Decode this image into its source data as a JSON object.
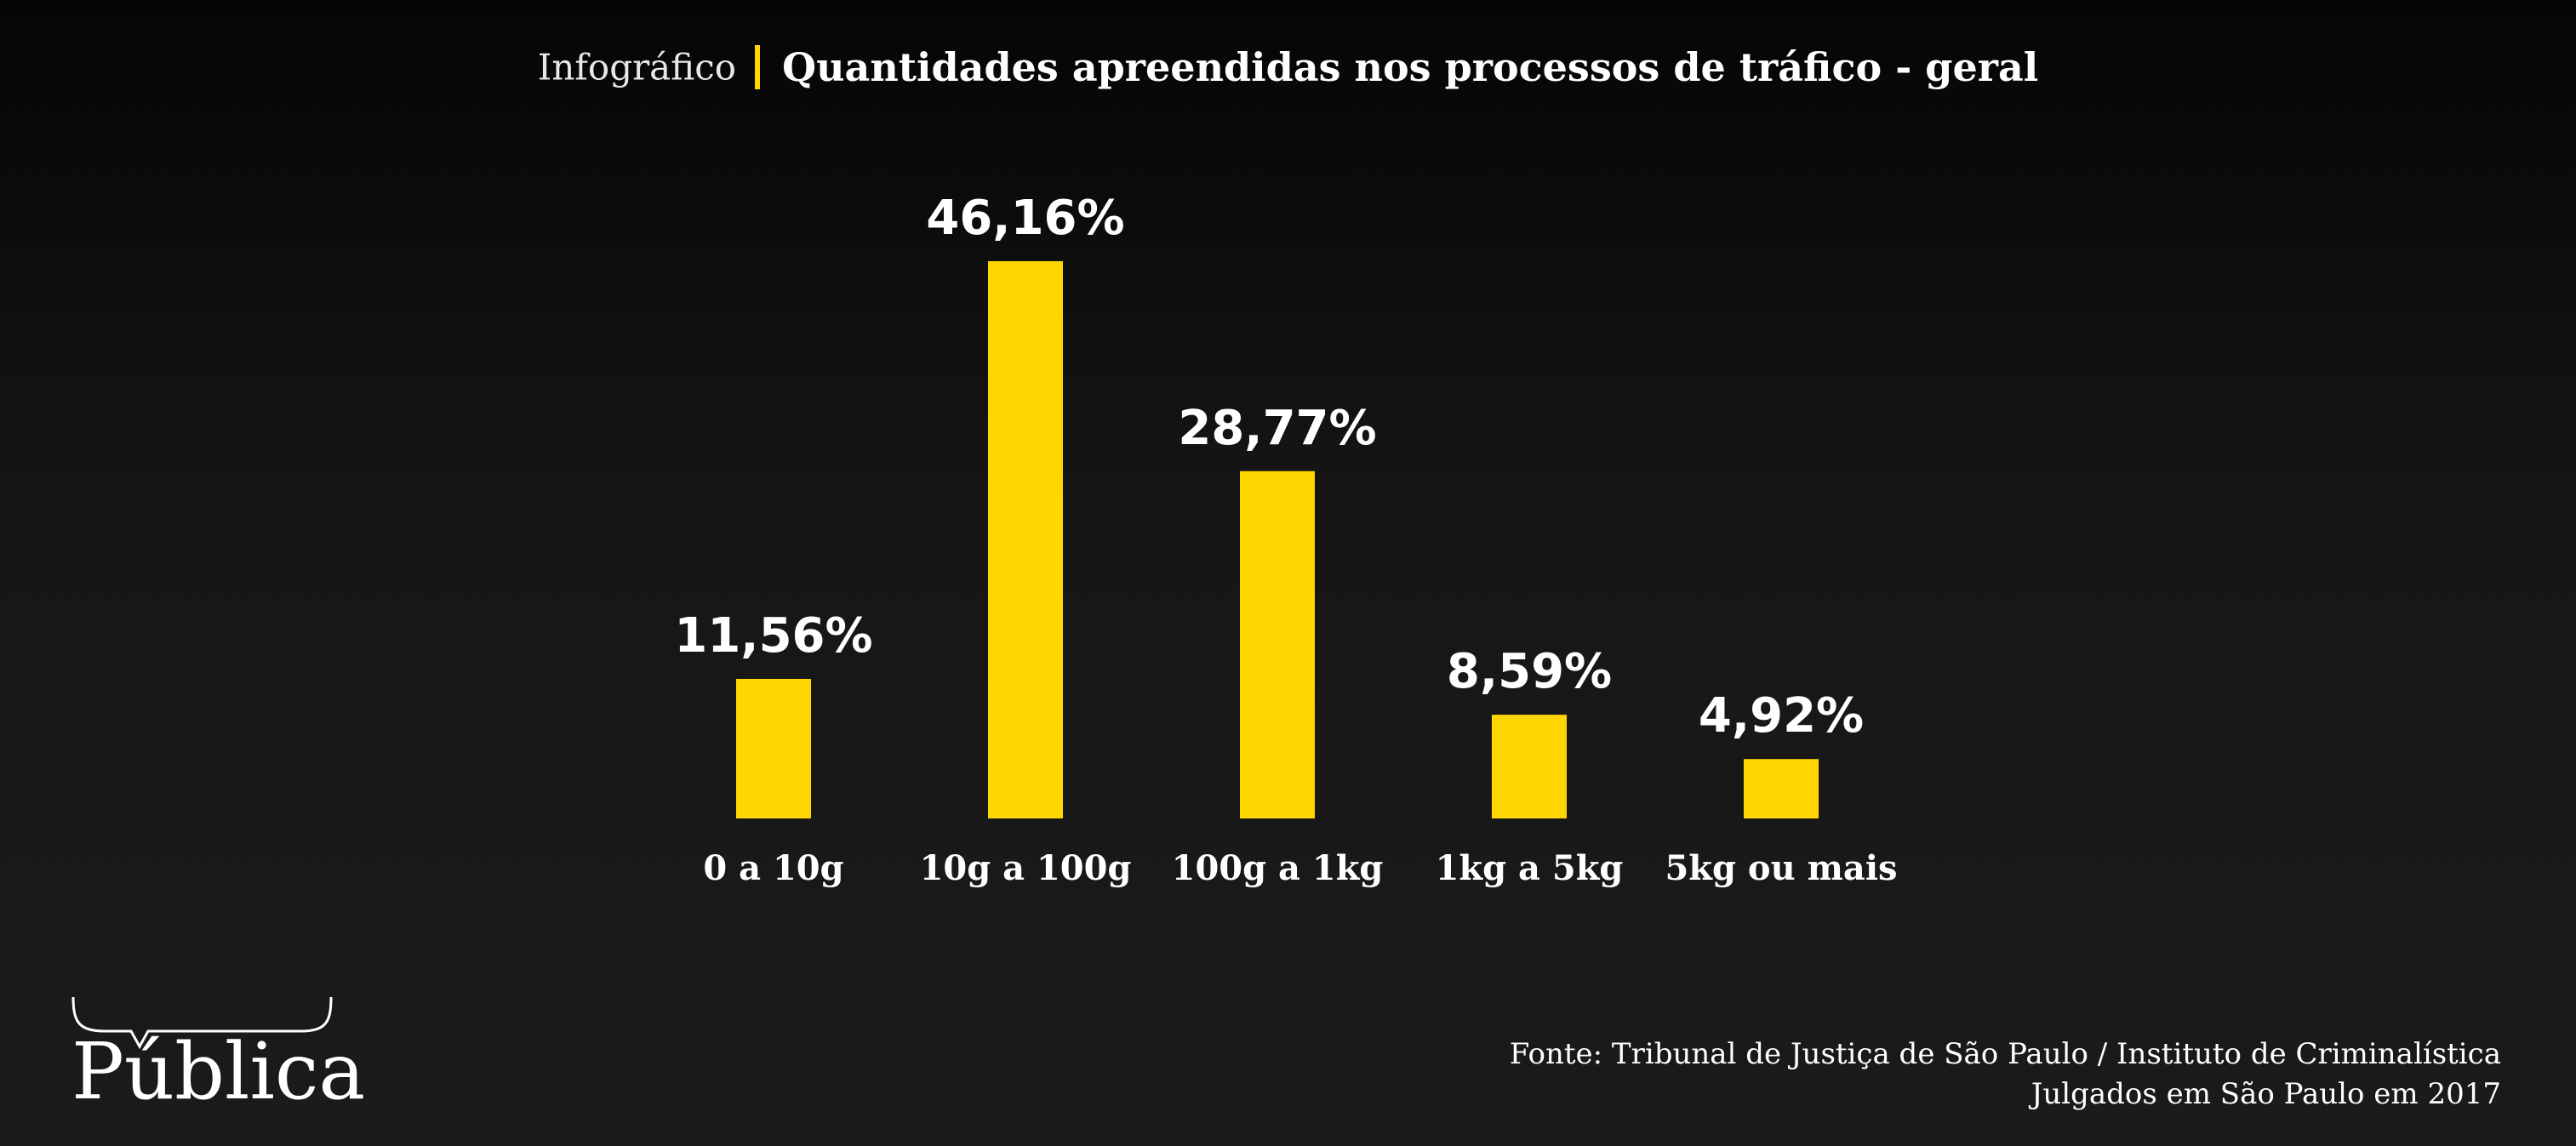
{
  "header": {
    "prefix": "Infográfico",
    "title": "Quantidades apreendidas nos processos de tráfico - geral"
  },
  "chart_data": {
    "type": "bar",
    "categories": [
      "0 a 10g",
      "10g a 100g",
      "100g a 1kg",
      "1kg a 5kg",
      "5kg ou mais"
    ],
    "values": [
      11.56,
      46.16,
      28.77,
      8.59,
      4.92
    ],
    "value_labels": [
      "11,56%",
      "46,16%",
      "28,77%",
      "8,59%",
      "4,92%"
    ],
    "unit": "%",
    "ylim": [
      0,
      46.16
    ],
    "grid": false,
    "bar_color": "#ffd600"
  },
  "footer": {
    "logo_text": "Pública",
    "source_line1": "Fonte: Tribunal de Justiça de São Paulo / Instituto de Criminalística",
    "source_line2": "Julgados em São Paulo em 2017"
  },
  "colors": {
    "accent": "#ffd600",
    "text": "#ffffff"
  }
}
